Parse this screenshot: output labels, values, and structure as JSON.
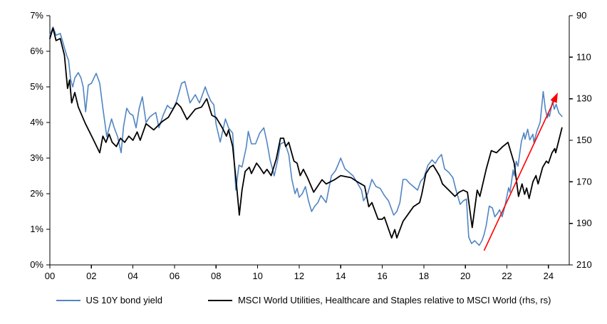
{
  "figure": {
    "background": "#FFFFFF"
  },
  "legend": {
    "items": [
      {
        "label": "US 10Y bond yield",
        "color": "#5185C2"
      },
      {
        "label": "MSCI World Utilities, Healthcare and Staples relative to MSCI World (rhs, rs)",
        "color": "#000000"
      }
    ]
  },
  "chart_data": {
    "type": "line",
    "title": "",
    "x_domain": [
      2000,
      2025
    ],
    "x_ticks": {
      "values": [
        2000,
        2002,
        2004,
        2006,
        2008,
        2010,
        2012,
        2014,
        2016,
        2018,
        2020,
        2022,
        2024
      ],
      "labels": [
        "00",
        "02",
        "04",
        "06",
        "08",
        "10",
        "12",
        "14",
        "16",
        "18",
        "20",
        "22",
        "24"
      ]
    },
    "y_left": {
      "min": 0,
      "max": 7,
      "tick_values": [
        0,
        1,
        2,
        3,
        4,
        5,
        6,
        7
      ],
      "tick_labels": [
        "0%",
        "1%",
        "2%",
        "3%",
        "4%",
        "5%",
        "6%",
        "7%"
      ]
    },
    "y_right": {
      "min": 90,
      "max": 210,
      "reversed_display": true,
      "tick_values": [
        90,
        110,
        130,
        150,
        170,
        190,
        210
      ],
      "tick_labels": [
        "90",
        "110",
        "130",
        "150",
        "170",
        "190",
        "210"
      ]
    },
    "grid": false,
    "legend_position": "bottom",
    "series": [
      {
        "name": "US 10Y bond yield",
        "axis": "left",
        "color": "#5185C2",
        "width": 1.6,
        "data_name": "us-10y-line",
        "points": [
          [
            2000.0,
            6.45
          ],
          [
            2000.15,
            6.68
          ],
          [
            2000.3,
            6.45
          ],
          [
            2000.5,
            6.5
          ],
          [
            2000.65,
            6.2
          ],
          [
            2000.8,
            5.9
          ],
          [
            2000.9,
            5.75
          ],
          [
            2001.0,
            5.2
          ],
          [
            2001.1,
            5.0
          ],
          [
            2001.2,
            5.25
          ],
          [
            2001.37,
            5.4
          ],
          [
            2001.5,
            5.25
          ],
          [
            2001.6,
            5.0
          ],
          [
            2001.72,
            4.3
          ],
          [
            2001.85,
            5.05
          ],
          [
            2002.0,
            5.1
          ],
          [
            2002.23,
            5.38
          ],
          [
            2002.4,
            5.1
          ],
          [
            2002.55,
            4.4
          ],
          [
            2002.74,
            3.6
          ],
          [
            2002.97,
            4.1
          ],
          [
            2003.1,
            3.85
          ],
          [
            2003.26,
            3.6
          ],
          [
            2003.43,
            3.15
          ],
          [
            2003.55,
            3.9
          ],
          [
            2003.7,
            4.4
          ],
          [
            2003.85,
            4.25
          ],
          [
            2004.0,
            4.2
          ],
          [
            2004.15,
            3.85
          ],
          [
            2004.3,
            4.4
          ],
          [
            2004.45,
            4.72
          ],
          [
            2004.63,
            4.0
          ],
          [
            2004.8,
            4.15
          ],
          [
            2004.95,
            4.22
          ],
          [
            2005.1,
            4.28
          ],
          [
            2005.25,
            3.85
          ],
          [
            2005.45,
            4.2
          ],
          [
            2005.66,
            4.48
          ],
          [
            2005.8,
            4.4
          ],
          [
            2005.95,
            4.4
          ],
          [
            2006.1,
            4.6
          ],
          [
            2006.34,
            5.1
          ],
          [
            2006.5,
            5.15
          ],
          [
            2006.6,
            4.9
          ],
          [
            2006.75,
            4.55
          ],
          [
            2007.0,
            4.78
          ],
          [
            2007.2,
            4.55
          ],
          [
            2007.48,
            5.0
          ],
          [
            2007.6,
            4.8
          ],
          [
            2007.75,
            4.6
          ],
          [
            2007.89,
            4.5
          ],
          [
            2008.0,
            3.95
          ],
          [
            2008.2,
            3.45
          ],
          [
            2008.45,
            4.1
          ],
          [
            2008.6,
            3.85
          ],
          [
            2008.8,
            3.7
          ],
          [
            2008.95,
            2.1
          ],
          [
            2009.1,
            2.8
          ],
          [
            2009.25,
            2.75
          ],
          [
            2009.45,
            3.3
          ],
          [
            2009.55,
            3.75
          ],
          [
            2009.7,
            3.4
          ],
          [
            2009.9,
            3.4
          ],
          [
            2010.1,
            3.7
          ],
          [
            2010.3,
            3.85
          ],
          [
            2010.45,
            3.45
          ],
          [
            2010.6,
            2.95
          ],
          [
            2010.8,
            2.5
          ],
          [
            2010.95,
            2.9
          ],
          [
            2011.1,
            3.4
          ],
          [
            2011.3,
            3.45
          ],
          [
            2011.5,
            3.1
          ],
          [
            2011.65,
            2.4
          ],
          [
            2011.8,
            2.0
          ],
          [
            2011.9,
            2.15
          ],
          [
            2012.0,
            1.9
          ],
          [
            2012.15,
            2.0
          ],
          [
            2012.3,
            2.2
          ],
          [
            2012.45,
            1.8
          ],
          [
            2012.6,
            1.5
          ],
          [
            2012.75,
            1.65
          ],
          [
            2012.9,
            1.75
          ],
          [
            2013.05,
            1.95
          ],
          [
            2013.3,
            1.75
          ],
          [
            2013.55,
            2.5
          ],
          [
            2013.75,
            2.65
          ],
          [
            2013.9,
            2.85
          ],
          [
            2014.0,
            3.0
          ],
          [
            2014.2,
            2.7
          ],
          [
            2014.4,
            2.6
          ],
          [
            2014.6,
            2.5
          ],
          [
            2014.8,
            2.3
          ],
          [
            2015.0,
            2.1
          ],
          [
            2015.1,
            1.8
          ],
          [
            2015.3,
            2.0
          ],
          [
            2015.5,
            2.4
          ],
          [
            2015.7,
            2.2
          ],
          [
            2015.9,
            2.15
          ],
          [
            2016.1,
            1.95
          ],
          [
            2016.3,
            1.8
          ],
          [
            2016.55,
            1.4
          ],
          [
            2016.7,
            1.5
          ],
          [
            2016.85,
            1.75
          ],
          [
            2017.0,
            2.4
          ],
          [
            2017.15,
            2.4
          ],
          [
            2017.3,
            2.3
          ],
          [
            2017.5,
            2.2
          ],
          [
            2017.7,
            2.1
          ],
          [
            2017.85,
            2.35
          ],
          [
            2018.0,
            2.45
          ],
          [
            2018.2,
            2.8
          ],
          [
            2018.4,
            2.95
          ],
          [
            2018.55,
            2.85
          ],
          [
            2018.7,
            3.0
          ],
          [
            2018.85,
            3.1
          ],
          [
            2019.0,
            2.7
          ],
          [
            2019.2,
            2.6
          ],
          [
            2019.4,
            2.45
          ],
          [
            2019.55,
            2.1
          ],
          [
            2019.75,
            1.7
          ],
          [
            2019.9,
            1.8
          ],
          [
            2020.05,
            1.85
          ],
          [
            2020.16,
            0.78
          ],
          [
            2020.3,
            0.6
          ],
          [
            2020.45,
            0.68
          ],
          [
            2020.55,
            0.62
          ],
          [
            2020.67,
            0.55
          ],
          [
            2020.8,
            0.68
          ],
          [
            2020.9,
            0.85
          ],
          [
            2021.0,
            1.1
          ],
          [
            2021.15,
            1.65
          ],
          [
            2021.3,
            1.6
          ],
          [
            2021.42,
            1.35
          ],
          [
            2021.55,
            1.45
          ],
          [
            2021.65,
            1.55
          ],
          [
            2021.77,
            1.35
          ],
          [
            2021.9,
            1.64
          ],
          [
            2022.08,
            2.17
          ],
          [
            2022.15,
            2.04
          ],
          [
            2022.3,
            2.67
          ],
          [
            2022.35,
            2.5
          ],
          [
            2022.45,
            2.91
          ],
          [
            2022.53,
            2.77
          ],
          [
            2022.7,
            3.47
          ],
          [
            2022.82,
            3.71
          ],
          [
            2022.87,
            3.53
          ],
          [
            2023.0,
            3.81
          ],
          [
            2023.1,
            3.51
          ],
          [
            2023.25,
            3.67
          ],
          [
            2023.3,
            3.44
          ],
          [
            2023.45,
            3.77
          ],
          [
            2023.6,
            4.01
          ],
          [
            2023.75,
            4.87
          ],
          [
            2023.85,
            4.37
          ],
          [
            2023.95,
            4.13
          ],
          [
            2024.0,
            4.27
          ],
          [
            2024.05,
            4.17
          ],
          [
            2024.2,
            4.61
          ],
          [
            2024.28,
            4.37
          ],
          [
            2024.37,
            4.51
          ],
          [
            2024.5,
            4.27
          ],
          [
            2024.65,
            4.17
          ]
        ]
      },
      {
        "name": "MSCI World Utilities, Healthcare and Staples relative to MSCI World (rhs, rs)",
        "axis": "right",
        "color": "#000000",
        "width": 1.8,
        "data_name": "msci-relative-line",
        "points": [
          [
            2000.0,
            101
          ],
          [
            2000.15,
            96
          ],
          [
            2000.3,
            102
          ],
          [
            2000.5,
            101
          ],
          [
            2000.7,
            109
          ],
          [
            2000.85,
            125
          ],
          [
            2000.95,
            121
          ],
          [
            2001.05,
            132
          ],
          [
            2001.2,
            127
          ],
          [
            2001.37,
            134
          ],
          [
            2001.71,
            142
          ],
          [
            2002.06,
            149
          ],
          [
            2002.4,
            156
          ],
          [
            2002.55,
            148
          ],
          [
            2002.7,
            151
          ],
          [
            2002.85,
            147
          ],
          [
            2003.0,
            151
          ],
          [
            2003.2,
            153
          ],
          [
            2003.4,
            149
          ],
          [
            2003.6,
            151
          ],
          [
            2003.8,
            148
          ],
          [
            2004.0,
            150
          ],
          [
            2004.2,
            146
          ],
          [
            2004.35,
            150
          ],
          [
            2004.63,
            142
          ],
          [
            2005.0,
            145
          ],
          [
            2005.4,
            141
          ],
          [
            2005.7,
            139
          ],
          [
            2006.1,
            132
          ],
          [
            2006.3,
            134
          ],
          [
            2006.6,
            140
          ],
          [
            2007.0,
            135
          ],
          [
            2007.3,
            134
          ],
          [
            2007.55,
            130
          ],
          [
            2007.8,
            138
          ],
          [
            2008.0,
            139
          ],
          [
            2008.3,
            144
          ],
          [
            2008.5,
            148
          ],
          [
            2008.6,
            145
          ],
          [
            2008.8,
            153
          ],
          [
            2009.0,
            173
          ],
          [
            2009.12,
            186
          ],
          [
            2009.25,
            174
          ],
          [
            2009.4,
            165
          ],
          [
            2009.6,
            163
          ],
          [
            2009.7,
            166
          ],
          [
            2009.95,
            161
          ],
          [
            2010.1,
            163
          ],
          [
            2010.3,
            166
          ],
          [
            2010.45,
            164
          ],
          [
            2010.65,
            167
          ],
          [
            2010.9,
            159
          ],
          [
            2011.1,
            149
          ],
          [
            2011.25,
            149
          ],
          [
            2011.35,
            153
          ],
          [
            2011.5,
            151
          ],
          [
            2011.75,
            160
          ],
          [
            2011.9,
            161
          ],
          [
            2012.05,
            167
          ],
          [
            2012.2,
            164
          ],
          [
            2012.4,
            168
          ],
          [
            2012.7,
            175
          ],
          [
            2013.1,
            169
          ],
          [
            2013.3,
            171
          ],
          [
            2013.7,
            169
          ],
          [
            2014.0,
            167
          ],
          [
            2014.5,
            168
          ],
          [
            2014.8,
            170
          ],
          [
            2015.15,
            172
          ],
          [
            2015.35,
            182
          ],
          [
            2015.5,
            180
          ],
          [
            2015.8,
            188
          ],
          [
            2016.0,
            188
          ],
          [
            2016.1,
            187
          ],
          [
            2016.45,
            197
          ],
          [
            2016.6,
            193
          ],
          [
            2016.7,
            197
          ],
          [
            2017.0,
            189
          ],
          [
            2017.5,
            182
          ],
          [
            2017.8,
            180
          ],
          [
            2017.9,
            176
          ],
          [
            2018.1,
            166
          ],
          [
            2018.3,
            163
          ],
          [
            2018.45,
            162
          ],
          [
            2018.75,
            167
          ],
          [
            2018.9,
            171
          ],
          [
            2019.2,
            174
          ],
          [
            2019.5,
            177
          ],
          [
            2019.7,
            175
          ],
          [
            2019.9,
            174
          ],
          [
            2020.1,
            175
          ],
          [
            2020.33,
            192
          ],
          [
            2020.45,
            183
          ],
          [
            2020.57,
            174
          ],
          [
            2020.7,
            177
          ],
          [
            2021.0,
            164
          ],
          [
            2021.25,
            155
          ],
          [
            2021.5,
            156
          ],
          [
            2021.8,
            153
          ],
          [
            2022.05,
            151
          ],
          [
            2022.35,
            161
          ],
          [
            2022.56,
            177
          ],
          [
            2022.73,
            171
          ],
          [
            2022.85,
            176
          ],
          [
            2022.95,
            173
          ],
          [
            2023.07,
            178
          ],
          [
            2023.25,
            170
          ],
          [
            2023.4,
            167
          ],
          [
            2023.5,
            171
          ],
          [
            2023.72,
            163
          ],
          [
            2023.9,
            160
          ],
          [
            2024.0,
            161
          ],
          [
            2024.17,
            156
          ],
          [
            2024.3,
            154
          ],
          [
            2024.35,
            156
          ],
          [
            2024.65,
            144
          ]
        ]
      }
    ],
    "annotations": [
      {
        "type": "arrow",
        "axis": "left",
        "from": [
          2020.9,
          0.4
        ],
        "to": [
          2024.45,
          4.84
        ],
        "color": "#FF0000",
        "width": 1.6
      }
    ]
  }
}
